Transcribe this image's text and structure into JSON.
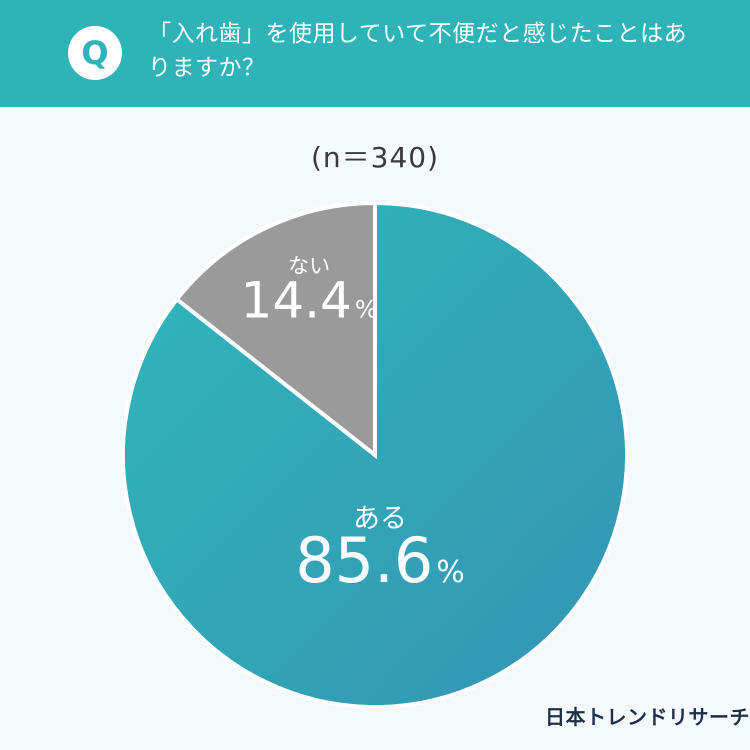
{
  "header": {
    "badge": "Q",
    "question": "「入れ歯」を使用していて不便だと感じたことはありますか？"
  },
  "sample_size": "(n＝340)",
  "brand": "日本トレンドリサーチ",
  "chart_data": {
    "type": "pie",
    "title": "",
    "slices": [
      {
        "label": "ある",
        "value": 85.6,
        "display": "85.6",
        "unit": "%",
        "color": "#2fb0b7"
      },
      {
        "label": "ない",
        "value": 14.4,
        "display": "14.4",
        "unit": "%",
        "color": "#9a9a9a"
      }
    ],
    "start_angle": "12 o'clock",
    "direction": "clockwise",
    "slice_border_color": "#ffffff"
  }
}
